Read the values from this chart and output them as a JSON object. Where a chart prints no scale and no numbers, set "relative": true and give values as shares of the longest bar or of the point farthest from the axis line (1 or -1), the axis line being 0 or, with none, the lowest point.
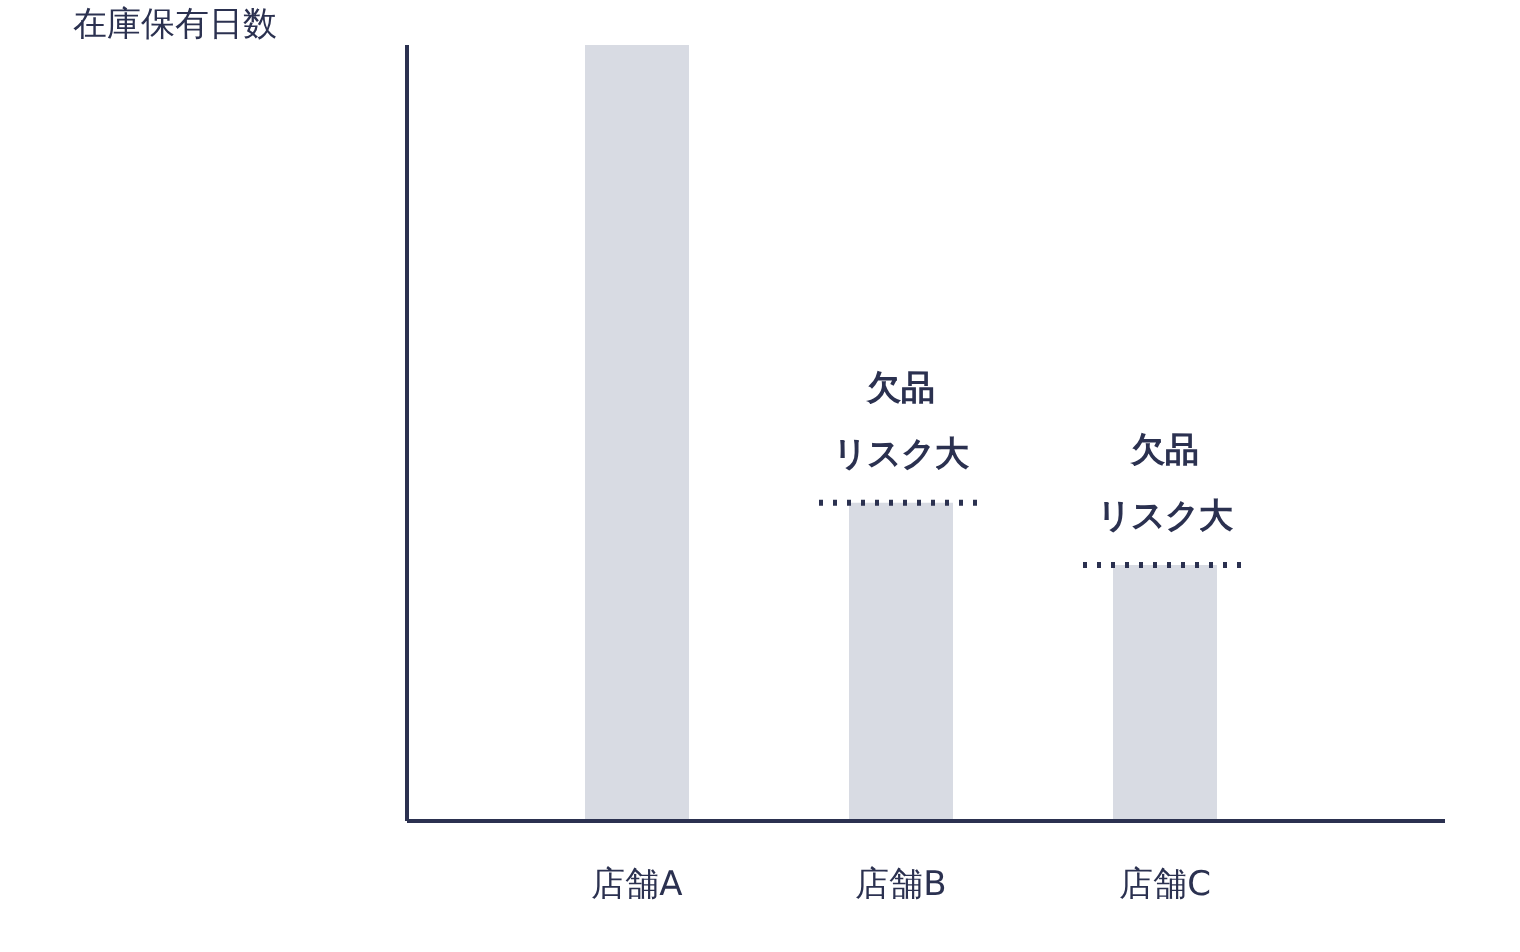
{
  "chart_data": {
    "type": "bar",
    "relative": true,
    "ylabel": "在庫保有日数",
    "categories": [
      "店舗A",
      "店舗B",
      "店舗C"
    ],
    "values": [
      1,
      0.41,
      0.33
    ],
    "color": "#d8dbe3",
    "grid": false,
    "annotations": [
      {
        "text": "欠品",
        "x": "店舗B",
        "y": 0.41
      },
      {
        "text": "リスク大",
        "x": "店舗B",
        "y": 0.41
      },
      {
        "text": "欠品",
        "x": "店舗C",
        "y": 0.33
      },
      {
        "text": "リスク大",
        "x": "店舗C",
        "y": 0.33
      }
    ]
  }
}
